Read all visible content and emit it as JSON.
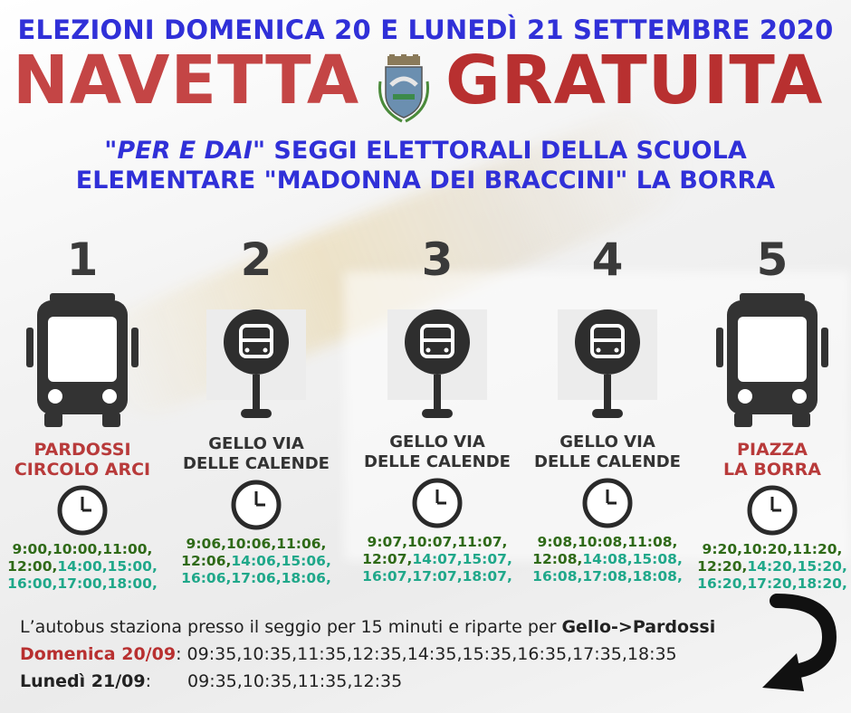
{
  "header": {
    "headline": "ELEZIONI DOMENICA 20 E LUNEDÌ 21 SETTEMBRE 2020",
    "title_left": "NAVETTA",
    "title_right": "GRATUITA",
    "subtitle_quote": "\"PER E DAI\"",
    "subtitle_line1_rest": " SEGGI ELETTORALI DELLA SCUOLA",
    "subtitle_line2": "ELEMENTARE \"MADONNA DEI BRACCINI\" LA BORRA"
  },
  "stops": [
    {
      "number": "1",
      "name_line1": "PARDOSSI",
      "name_line2": "CIRCOLO ARCI",
      "icon": "bus-icon",
      "times_line1": "9:00,10:00,11:00,",
      "times_line2_green": "12:00,",
      "times_line2_teal": "14:00,15:00,",
      "times_line3": "16:00,17:00,18:00,"
    },
    {
      "number": "2",
      "name_line1": "GELLO VIA",
      "name_line2": "DELLE CALENDE",
      "icon": "bus-stop-icon",
      "times_line1": "9:06,10:06,11:06,",
      "times_line2_green": "12:06,",
      "times_line2_teal": "14:06,15:06,",
      "times_line3": "16:06,17:06,18:06,"
    },
    {
      "number": "3",
      "name_line1": "GELLO VIA",
      "name_line2": "DELLE CALENDE",
      "icon": "bus-stop-icon",
      "times_line1": "9:07,10:07,11:07,",
      "times_line2_green": "12:07,",
      "times_line2_teal": "14:07,15:07,",
      "times_line3": "16:07,17:07,18:07,"
    },
    {
      "number": "4",
      "name_line1": "GELLO VIA",
      "name_line2": "DELLE CALENDE",
      "icon": "bus-stop-icon",
      "times_line1": "9:08,10:08,11:08,",
      "times_line2_green": "12:08,",
      "times_line2_teal": "14:08,15:08,",
      "times_line3": "16:08,17:08,18:08,"
    },
    {
      "number": "5",
      "name_line1": "PIAZZA",
      "name_line2": "LA BORRA",
      "icon": "bus-icon",
      "times_line1": "9:20,10:20,11:20,",
      "times_line2_green": "12:20,",
      "times_line2_teal": "14:20,15:20,",
      "times_line3": "16:20,17:20,18:20,"
    }
  ],
  "footer": {
    "note_prefix": "L’autobus staziona presso il seggio per 15 minuti e riparte per ",
    "note_route": "Gello->Pardossi",
    "sunday_label": "Domenica 20/09",
    "sunday_sep": ": ",
    "sunday_times": "09:35,10:35,11:35,12:35,14:35,15:35,16:35,17:35,18:35",
    "monday_label": "Lunedì 21/09",
    "monday_sep": ":",
    "monday_times": "09:35,10:35,11:35,12:35"
  },
  "colors": {
    "headline_blue": "#3030d8",
    "title_red": "#c44545",
    "stop_red": "#b83a3a",
    "time_green": "#2f6a18",
    "time_teal": "#20a88a"
  }
}
